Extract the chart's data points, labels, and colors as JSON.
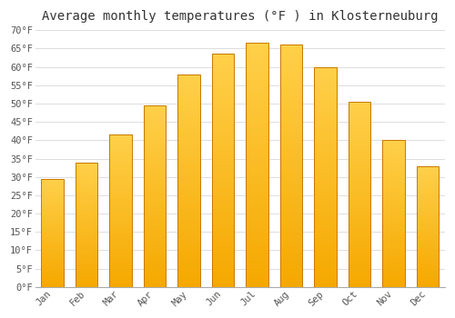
{
  "title": "Average monthly temperatures (°F ) in Klosterneuburg",
  "months": [
    "Jan",
    "Feb",
    "Mar",
    "Apr",
    "May",
    "Jun",
    "Jul",
    "Aug",
    "Sep",
    "Oct",
    "Nov",
    "Dec"
  ],
  "values": [
    29.5,
    34.0,
    41.5,
    49.5,
    58.0,
    63.5,
    66.5,
    66.0,
    60.0,
    50.5,
    40.0,
    33.0
  ],
  "bar_color_bottom": "#F5A800",
  "bar_color_top": "#FFD04A",
  "bar_edge_color": "#C87800",
  "ylim": [
    0,
    70
  ],
  "yticks": [
    0,
    5,
    10,
    15,
    20,
    25,
    30,
    35,
    40,
    45,
    50,
    55,
    60,
    65,
    70
  ],
  "ytick_labels": [
    "0°F",
    "5°F",
    "10°F",
    "15°F",
    "20°F",
    "25°F",
    "30°F",
    "35°F",
    "40°F",
    "45°F",
    "50°F",
    "55°F",
    "60°F",
    "65°F",
    "70°F"
  ],
  "background_color": "#ffffff",
  "plot_bg_color": "#ffffff",
  "grid_color": "#dddddd",
  "title_fontsize": 10,
  "tick_fontsize": 7.5,
  "bar_width": 0.65,
  "title_color": "#333333",
  "tick_color": "#555555"
}
